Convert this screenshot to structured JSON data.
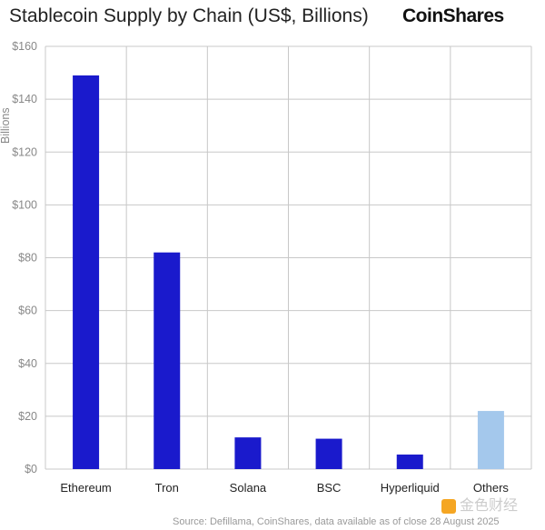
{
  "chart_data": {
    "type": "bar",
    "title": "Stablecoin Supply by Chain (US$, Billions)",
    "ylabel": "Billions",
    "categories": [
      "Ethereum",
      "Tron",
      "Solana",
      "BSC",
      "Hyperliquid",
      "Others"
    ],
    "values": [
      149,
      82,
      12,
      11.5,
      5.5,
      22
    ],
    "colors": [
      "#1a1acc",
      "#1a1acc",
      "#1a1acc",
      "#1a1acc",
      "#1a1acc",
      "#a4c8ec"
    ],
    "ylim": [
      0,
      160
    ],
    "yticks": [
      0,
      20,
      40,
      60,
      80,
      100,
      120,
      140,
      160
    ],
    "ytick_labels": [
      "$0",
      "$20",
      "$40",
      "$60",
      "$80",
      "$100",
      "$120",
      "$140",
      "$160"
    ],
    "grid": true
  },
  "brand": "CoinShares",
  "source": "Source: Defillama, CoinShares, data available as of close 28 August 2025",
  "watermark": "金色财经"
}
